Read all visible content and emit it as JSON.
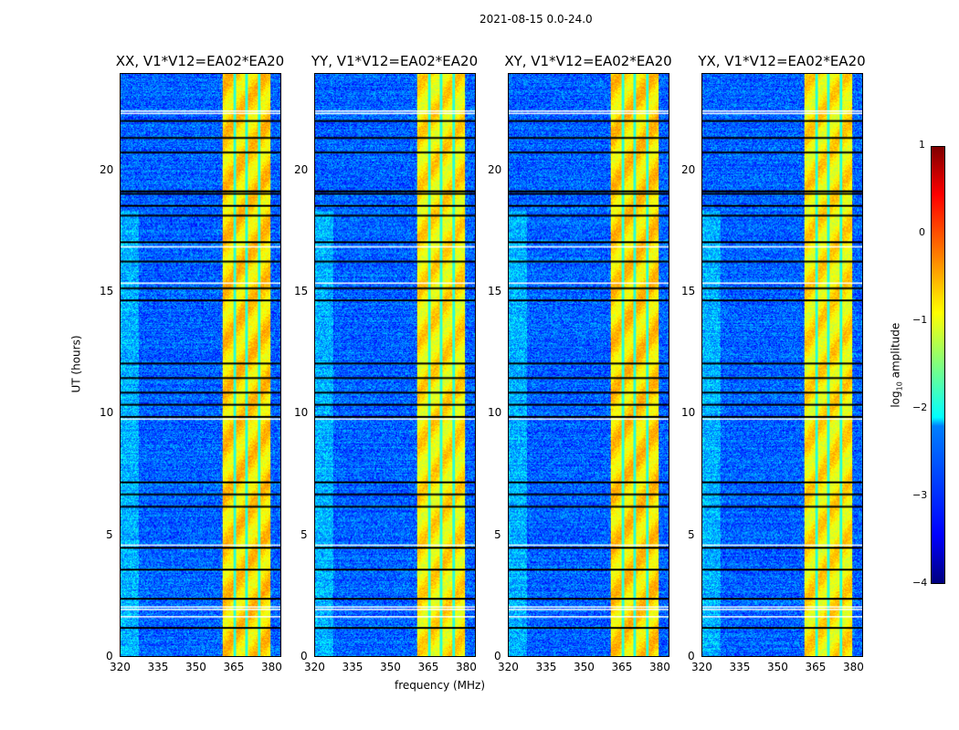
{
  "suptitle": "2021-08-15 0.0-24.0",
  "chart_data": {
    "type": "heatmap",
    "title": "2021-08-15 0.0-24.0",
    "xlabel": "frequency (MHz)",
    "ylabel": "UT (hours)",
    "xlim": [
      320,
      384
    ],
    "ylim": [
      0,
      24
    ],
    "xticks": [
      "320",
      "335",
      "350",
      "365",
      "380"
    ],
    "yticks": [
      "0",
      "5",
      "10",
      "15",
      "20"
    ],
    "panels": [
      {
        "title": "XX, V1*V12=EA02*EA20"
      },
      {
        "title": "YY, V1*V12=EA02*EA20"
      },
      {
        "title": "XY, V1*V12=EA02*EA20"
      },
      {
        "title": "YX, V1*V12=EA02*EA20"
      }
    ],
    "strong_band_mhz": [
      360.5,
      380
    ],
    "band_gaps_mhz": [
      365.5,
      370.2,
      375.2
    ],
    "background_log_amplitude": -2.9,
    "band_log_amplitude": -0.8,
    "flagged_black_hours": [
      22.1,
      21.4,
      20.8,
      19.2,
      19.1,
      18.6,
      18.2,
      17.1,
      16.3,
      15.2,
      14.7,
      12.1,
      11.5,
      10.9,
      10.4,
      9.9,
      7.2,
      6.7,
      6.2,
      4.5,
      3.6,
      2.4,
      1.2
    ],
    "flagged_white_hours": [
      22.5,
      22.4,
      16.9,
      15.4,
      9.8,
      4.6,
      2.05,
      1.95,
      1.65
    ],
    "colorbar": {
      "label": "log10 amplitude",
      "label_main": "log",
      "label_sub": "10",
      "label_rest": " amplitude",
      "range": [
        -4,
        1
      ],
      "ticks": [
        "1",
        "0",
        "−1",
        "−2",
        "−3",
        "−4"
      ],
      "colormap": "jet"
    }
  }
}
